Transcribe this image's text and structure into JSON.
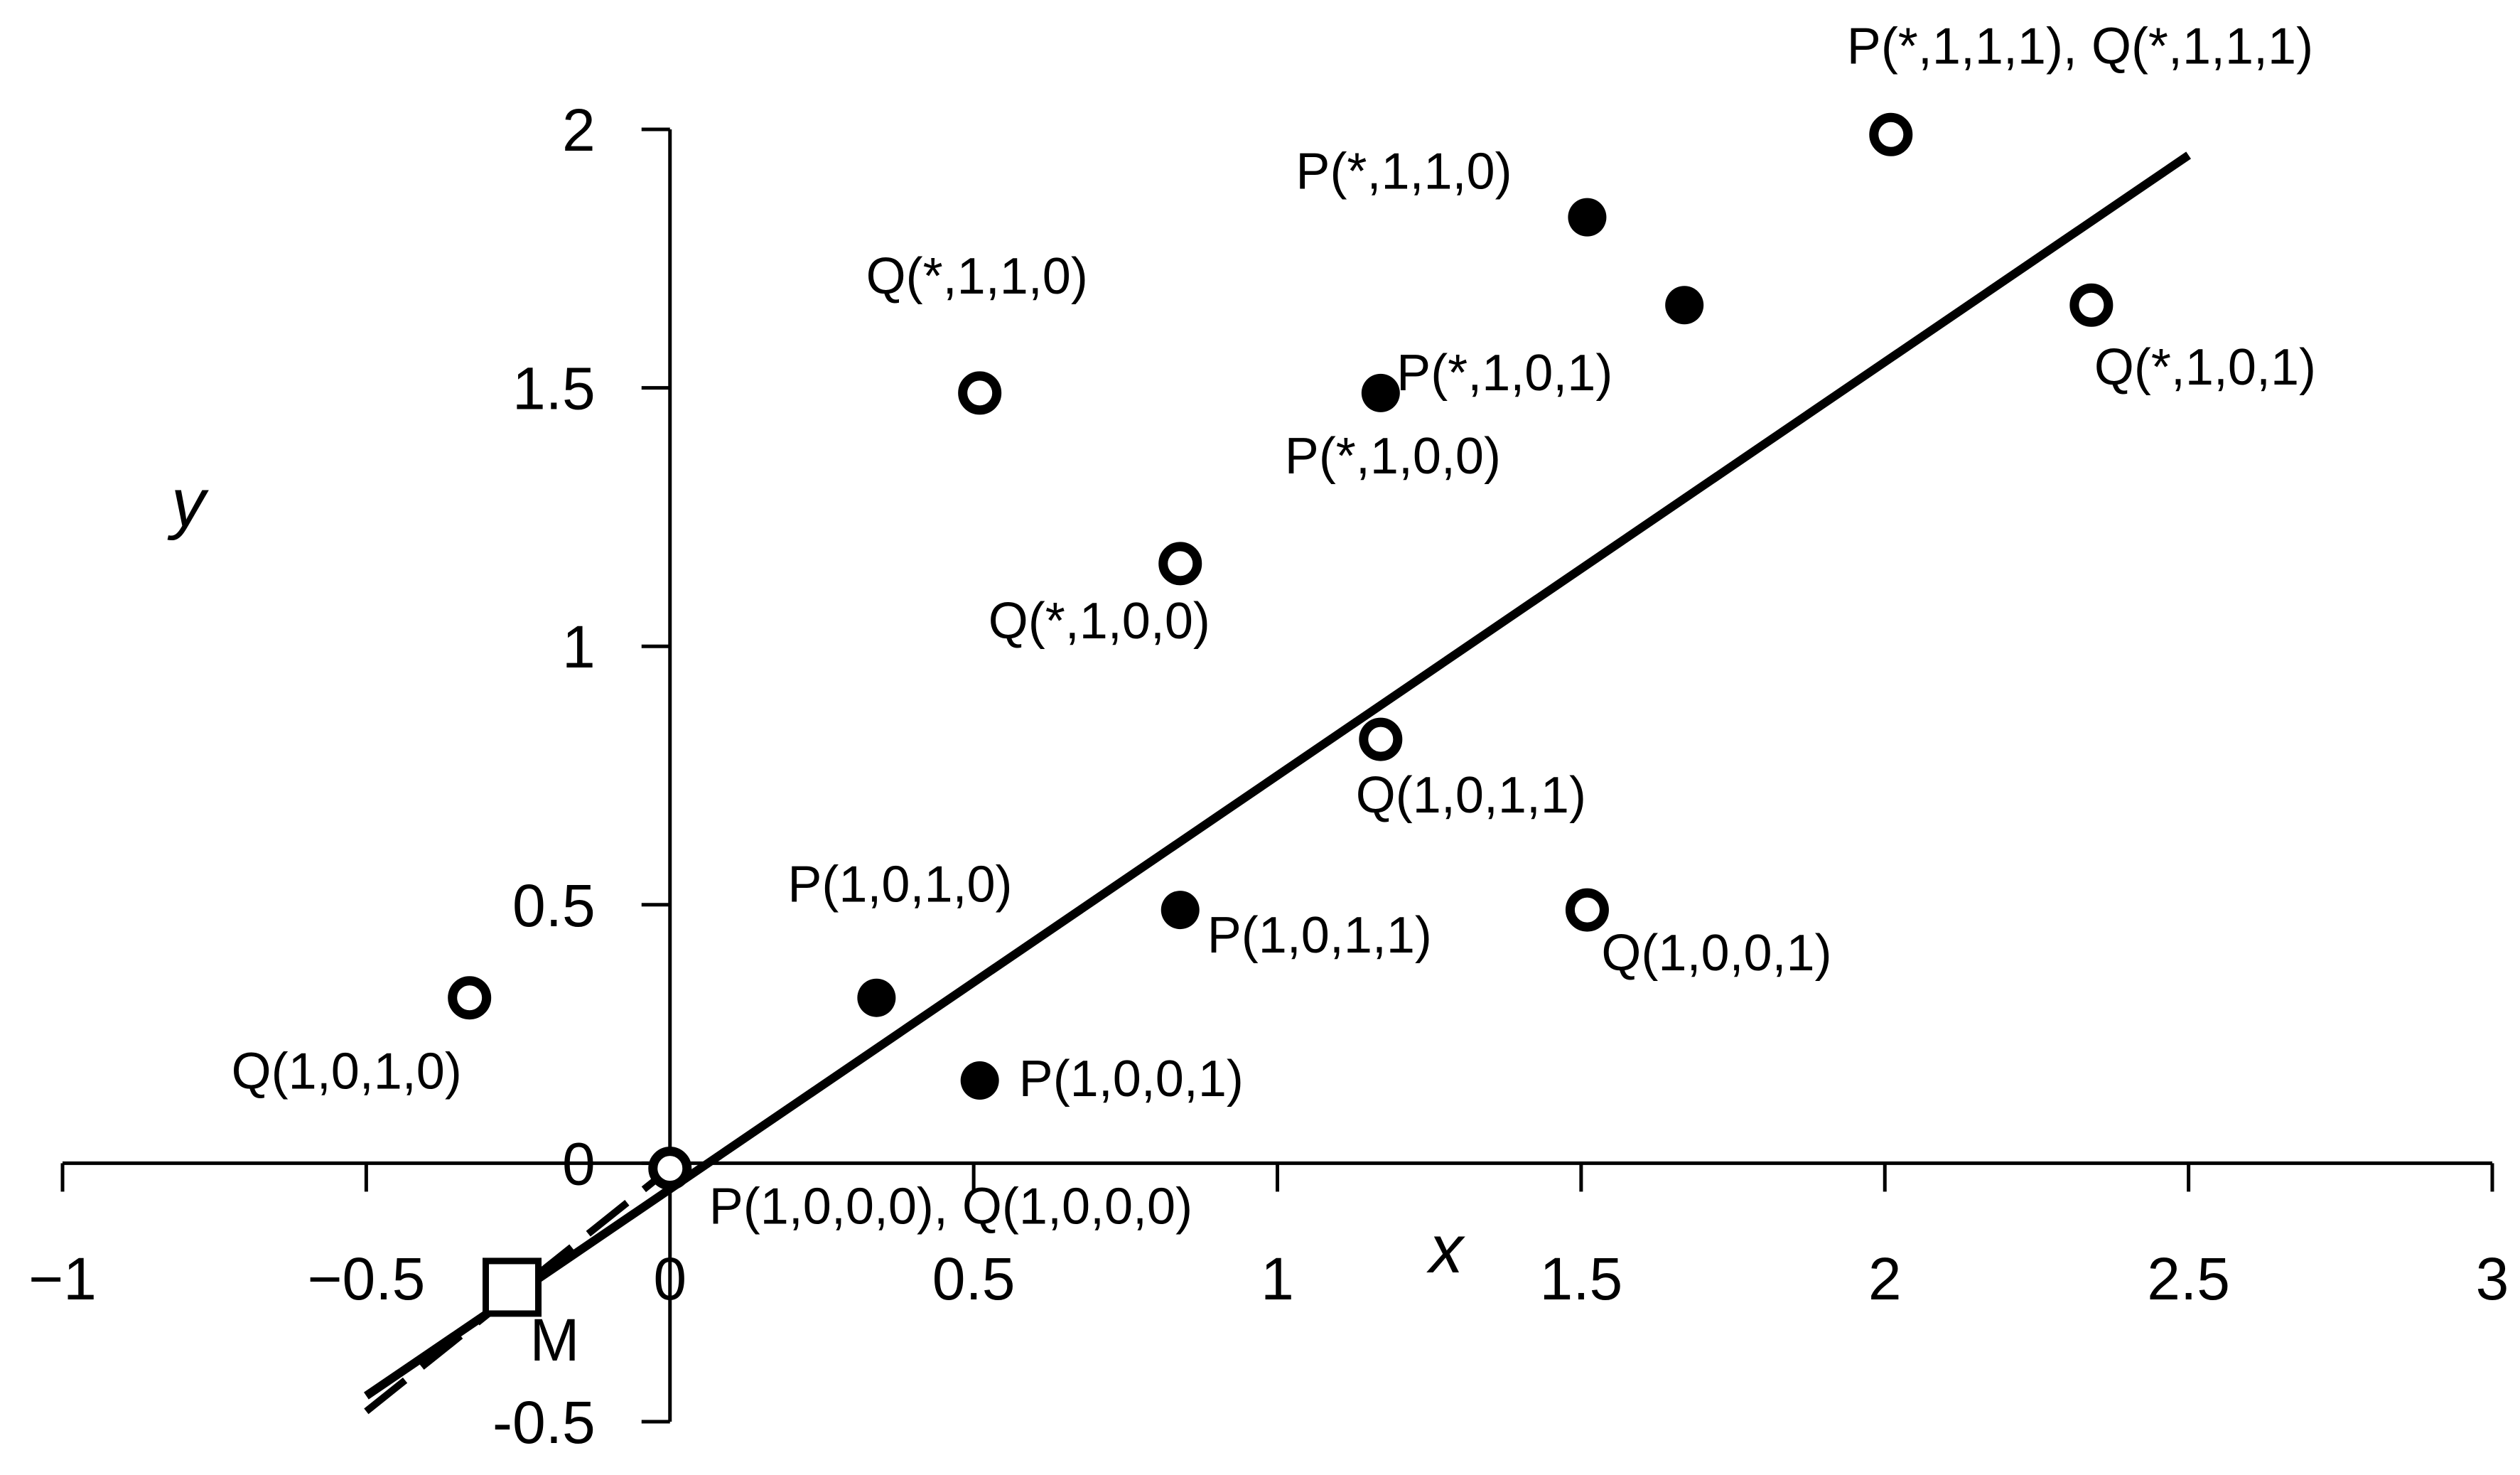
{
  "chart_data": {
    "type": "scatter",
    "title": "",
    "xlabel": "x",
    "ylabel": "y",
    "xlim": [
      -1,
      3
    ],
    "ylim": [
      -0.5,
      2
    ],
    "x_ticks": [
      -1,
      -0.5,
      0,
      0.5,
      1,
      1.5,
      2,
      2.5,
      3
    ],
    "x_tick_labels": [
      "−1",
      "−0.5",
      "0",
      "0.5",
      "1",
      "1.5",
      "2",
      "2.5",
      "3"
    ],
    "y_ticks": [
      -0.5,
      0,
      0.5,
      1,
      1.5,
      2
    ],
    "y_tick_labels": [
      "-0.5",
      "0",
      "0.5",
      "1",
      "1.5",
      "2"
    ],
    "grid": false,
    "series": [
      {
        "marker": "filled-circle",
        "points": [
          {
            "x": 0.34,
            "y": 0.32,
            "label": "P(1,0,1,0)"
          },
          {
            "x": 0.51,
            "y": 0.16,
            "label": "P(1,0,0,1)"
          },
          {
            "x": 0.84,
            "y": 0.49,
            "label": "P(1,0,1,1)"
          },
          {
            "x": 1.17,
            "y": 1.49,
            "label": "P(*,1,0,0)"
          },
          {
            "x": 1.51,
            "y": 1.83,
            "label": "P(*,1,1,0)"
          },
          {
            "x": 1.67,
            "y": 1.66,
            "label": "P(*,1,0,1)"
          }
        ]
      },
      {
        "marker": "open-circle",
        "points": [
          {
            "x": -0.33,
            "y": 0.32,
            "label": "Q(1,0,1,0)"
          },
          {
            "x": 0.0,
            "y": -0.01,
            "label": "P(1,0,0,0), Q(1,0,0,0)"
          },
          {
            "x": 0.51,
            "y": 1.49,
            "label": "Q(*,1,1,0)"
          },
          {
            "x": 0.84,
            "y": 1.16,
            "label": "Q(*,1,0,0)"
          },
          {
            "x": 1.17,
            "y": 0.82,
            "label": "Q(1,0,1,1)"
          },
          {
            "x": 1.51,
            "y": 0.49,
            "label": "Q(1,0,0,1)"
          },
          {
            "x": 2.01,
            "y": 1.99,
            "label": "P(*,1,1,1), Q(*,1,1,1)"
          },
          {
            "x": 2.34,
            "y": 1.66,
            "label": "Q(*,1,0,1)"
          }
        ]
      },
      {
        "marker": "open-square",
        "points": [
          {
            "x": -0.26,
            "y": -0.24,
            "label": "M"
          }
        ]
      }
    ],
    "lines": [
      {
        "style": "solid",
        "points": [
          [
            -0.5,
            -0.45
          ],
          [
            2.5,
            1.95
          ]
        ]
      },
      {
        "style": "dashed",
        "points": [
          [
            -0.5,
            -0.48
          ],
          [
            0.0,
            -0.01
          ]
        ]
      }
    ]
  }
}
